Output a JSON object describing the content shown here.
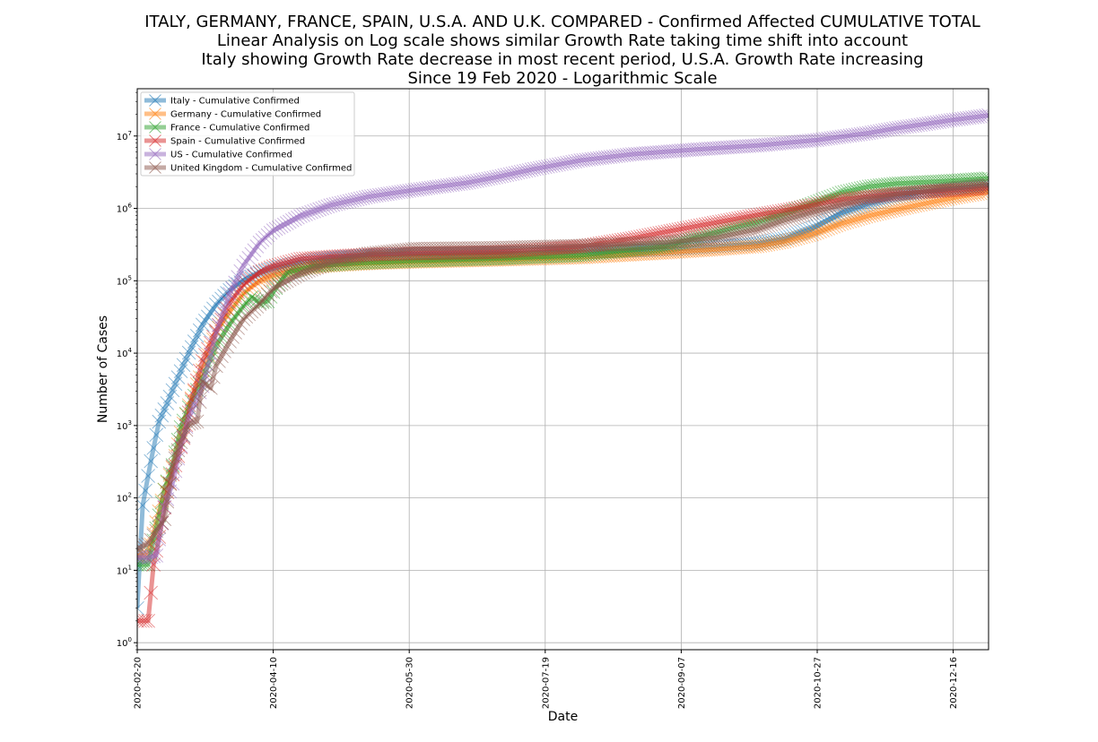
{
  "chart_data": {
    "type": "line",
    "title_lines": [
      "ITALY, GERMANY, FRANCE, SPAIN, U.S.A. AND U.K. COMPARED - Confirmed Affected CUMULATIVE TOTAL",
      "Linear Analysis on Log scale shows similar Growth Rate taking time shift into account",
      "Italy showing Growth Rate decrease in most recent period, U.S.A. Growth Rate increasing",
      "Since 19 Feb 2020 - Logarithmic Scale"
    ],
    "xlabel": "Date",
    "ylabel": "Number of Cases",
    "yscale": "log",
    "ylim": [
      0.8,
      45000000
    ],
    "xlim": [
      "2020-02-20",
      "2020-12-29"
    ],
    "x_ticks": [
      "2020-02-20",
      "2020-04-10",
      "2020-05-30",
      "2020-07-19",
      "2020-09-07",
      "2020-10-27",
      "2020-12-16"
    ],
    "y_ticks": [
      {
        "value": 1,
        "base": "10",
        "exp": "0"
      },
      {
        "value": 10,
        "base": "10",
        "exp": "1"
      },
      {
        "value": 100,
        "base": "10",
        "exp": "2"
      },
      {
        "value": 1000,
        "base": "10",
        "exp": "3"
      },
      {
        "value": 10000,
        "base": "10",
        "exp": "4"
      },
      {
        "value": 100000,
        "base": "10",
        "exp": "5"
      },
      {
        "value": 1000000,
        "base": "10",
        "exp": "6"
      },
      {
        "value": 10000000,
        "base": "10",
        "exp": "7"
      }
    ],
    "grid": true,
    "legend_position": "top-left",
    "marker": "x",
    "series": [
      {
        "name": "Italy - Cumulative Confirmed",
        "color": "#1f77b4",
        "points": [
          [
            "2020-02-20",
            3
          ],
          [
            "2020-02-22",
            79
          ],
          [
            "2020-02-25",
            322
          ],
          [
            "2020-02-28",
            1128
          ],
          [
            "2020-03-02",
            2036
          ],
          [
            "2020-03-06",
            4636
          ],
          [
            "2020-03-10",
            10149
          ],
          [
            "2020-03-15",
            24747
          ],
          [
            "2020-03-20",
            47021
          ],
          [
            "2020-03-25",
            74386
          ],
          [
            "2020-03-30",
            101739
          ],
          [
            "2020-04-05",
            128948
          ],
          [
            "2020-04-10",
            147577
          ],
          [
            "2020-04-20",
            181228
          ],
          [
            "2020-05-01",
            207428
          ],
          [
            "2020-05-15",
            223885
          ],
          [
            "2020-06-01",
            233197
          ],
          [
            "2020-07-01",
            240760
          ],
          [
            "2020-08-01",
            248070
          ],
          [
            "2020-09-01",
            269214
          ],
          [
            "2020-09-20",
            298156
          ],
          [
            "2020-10-05",
            327586
          ],
          [
            "2020-10-15",
            381602
          ],
          [
            "2020-10-25",
            525782
          ],
          [
            "2020-11-05",
            862681
          ],
          [
            "2020-11-15",
            1178529
          ],
          [
            "2020-11-25",
            1455022
          ],
          [
            "2020-12-05",
            1688939
          ],
          [
            "2020-12-15",
            1870576
          ],
          [
            "2020-12-29",
            2067487
          ]
        ]
      },
      {
        "name": "Germany - Cumulative Confirmed",
        "color": "#ff7f0e",
        "points": [
          [
            "2020-02-20",
            16
          ],
          [
            "2020-02-24",
            16
          ],
          [
            "2020-02-27",
            46
          ],
          [
            "2020-03-01",
            130
          ],
          [
            "2020-03-04",
            262
          ],
          [
            "2020-03-07",
            799
          ],
          [
            "2020-03-10",
            1908
          ],
          [
            "2020-03-15",
            5795
          ],
          [
            "2020-03-20",
            19848
          ],
          [
            "2020-03-25",
            37323
          ],
          [
            "2020-03-30",
            66885
          ],
          [
            "2020-04-05",
            100123
          ],
          [
            "2020-04-10",
            118235
          ],
          [
            "2020-04-20",
            147065
          ],
          [
            "2020-05-01",
            163009
          ],
          [
            "2020-05-15",
            174478
          ],
          [
            "2020-06-01",
            183410
          ],
          [
            "2020-07-01",
            195042
          ],
          [
            "2020-08-01",
            210402
          ],
          [
            "2020-09-01",
            244802
          ],
          [
            "2020-09-20",
            272337
          ],
          [
            "2020-10-05",
            300619
          ],
          [
            "2020-10-15",
            348557
          ],
          [
            "2020-10-25",
            437866
          ],
          [
            "2020-11-05",
            619089
          ],
          [
            "2020-11-15",
            790503
          ],
          [
            "2020-11-25",
            961320
          ],
          [
            "2020-12-05",
            1153556
          ],
          [
            "2020-12-15",
            1379238
          ],
          [
            "2020-12-29",
            1687185
          ]
        ]
      },
      {
        "name": "France - Cumulative Confirmed",
        "color": "#2ca02c",
        "points": [
          [
            "2020-02-20",
            12
          ],
          [
            "2020-02-24",
            12
          ],
          [
            "2020-02-27",
            38
          ],
          [
            "2020-03-01",
            130
          ],
          [
            "2020-03-04",
            285
          ],
          [
            "2020-03-07",
            949
          ],
          [
            "2020-03-10",
            1784
          ],
          [
            "2020-03-15",
            4499
          ],
          [
            "2020-03-20",
            12612
          ],
          [
            "2020-03-25",
            25233
          ],
          [
            "2020-03-30",
            44550
          ],
          [
            "2020-04-02",
            59105
          ],
          [
            "2020-04-05",
            50000
          ],
          [
            "2020-04-08",
            52000
          ],
          [
            "2020-04-10",
            70000
          ],
          [
            "2020-04-15",
            130000
          ],
          [
            "2020-04-25",
            160000
          ],
          [
            "2020-05-10",
            175000
          ],
          [
            "2020-06-01",
            189000
          ],
          [
            "2020-07-01",
            203000
          ],
          [
            "2020-08-01",
            225000
          ],
          [
            "2020-09-01",
            300000
          ],
          [
            "2020-09-20",
            470000
          ],
          [
            "2020-10-05",
            650000
          ],
          [
            "2020-10-15",
            850000
          ],
          [
            "2020-10-25",
            1150000
          ],
          [
            "2020-11-05",
            1650000
          ],
          [
            "2020-11-15",
            2000000
          ],
          [
            "2020-11-25",
            2200000
          ],
          [
            "2020-12-05",
            2300000
          ],
          [
            "2020-12-15",
            2400000
          ],
          [
            "2020-12-29",
            2600000
          ]
        ]
      },
      {
        "name": "Spain - Cumulative Confirmed",
        "color": "#d62728",
        "points": [
          [
            "2020-02-20",
            2
          ],
          [
            "2020-02-24",
            2
          ],
          [
            "2020-02-26",
            12
          ],
          [
            "2020-02-29",
            45
          ],
          [
            "2020-03-02",
            120
          ],
          [
            "2020-03-05",
            282
          ],
          [
            "2020-03-08",
            673
          ],
          [
            "2020-03-11",
            2277
          ],
          [
            "2020-03-15",
            7798
          ],
          [
            "2020-03-20",
            20410
          ],
          [
            "2020-03-25",
            49515
          ],
          [
            "2020-03-30",
            87956
          ],
          [
            "2020-04-05",
            131646
          ],
          [
            "2020-04-10",
            158273
          ],
          [
            "2020-04-20",
            200210
          ],
          [
            "2020-05-01",
            215216
          ],
          [
            "2020-05-15",
            230698
          ],
          [
            "2020-06-01",
            239638
          ],
          [
            "2020-07-01",
            249659
          ],
          [
            "2020-08-01",
            297000
          ],
          [
            "2020-08-20",
            386000
          ],
          [
            "2020-09-01",
            470973
          ],
          [
            "2020-09-20",
            640040
          ],
          [
            "2020-10-05",
            813412
          ],
          [
            "2020-10-15",
            936560
          ],
          [
            "2020-10-25",
            1098320
          ],
          [
            "2020-11-05",
            1328832
          ],
          [
            "2020-11-15",
            1458591
          ],
          [
            "2020-11-25",
            1594844
          ],
          [
            "2020-12-05",
            1684647
          ],
          [
            "2020-12-15",
            1762036
          ],
          [
            "2020-12-29",
            1912000
          ]
        ]
      },
      {
        "name": "US - Cumulative Confirmed",
        "color": "#9467bd",
        "points": [
          [
            "2020-02-20",
            15
          ],
          [
            "2020-02-24",
            15
          ],
          [
            "2020-02-27",
            16
          ],
          [
            "2020-03-01",
            75
          ],
          [
            "2020-03-04",
            158
          ],
          [
            "2020-03-07",
            520
          ],
          [
            "2020-03-10",
            1300
          ],
          [
            "2020-03-15",
            3500
          ],
          [
            "2020-03-20",
            19100
          ],
          [
            "2020-03-25",
            65778
          ],
          [
            "2020-03-30",
            161831
          ],
          [
            "2020-04-05",
            336851
          ],
          [
            "2020-04-10",
            496535
          ],
          [
            "2020-04-20",
            784708
          ],
          [
            "2020-05-01",
            1100000
          ],
          [
            "2020-05-15",
            1450000
          ],
          [
            "2020-06-01",
            1800000
          ],
          [
            "2020-06-20",
            2250000
          ],
          [
            "2020-07-01",
            2700000
          ],
          [
            "2020-07-15",
            3500000
          ],
          [
            "2020-08-01",
            4600000
          ],
          [
            "2020-08-20",
            5600000
          ],
          [
            "2020-09-07",
            6300000
          ],
          [
            "2020-09-20",
            6800000
          ],
          [
            "2020-10-05",
            7400000
          ],
          [
            "2020-10-15",
            8000000
          ],
          [
            "2020-10-27",
            8800000
          ],
          [
            "2020-11-05",
            9800000
          ],
          [
            "2020-11-15",
            11000000
          ],
          [
            "2020-11-25",
            12800000
          ],
          [
            "2020-12-05",
            14500000
          ],
          [
            "2020-12-15",
            16500000
          ],
          [
            "2020-12-29",
            19300000
          ]
        ]
      },
      {
        "name": "United Kingdom - Cumulative Confirmed",
        "color": "#8c564b",
        "points": [
          [
            "2020-02-20",
            20
          ],
          [
            "2020-02-24",
            23
          ],
          [
            "2020-02-27",
            35
          ],
          [
            "2020-03-01",
            51
          ],
          [
            "2020-03-04",
            273
          ],
          [
            "2020-03-07",
            590
          ],
          [
            "2020-03-10",
            1061
          ],
          [
            "2020-03-13",
            1140
          ],
          [
            "2020-03-15",
            3983
          ],
          [
            "2020-03-18",
            3300
          ],
          [
            "2020-03-20",
            6650
          ],
          [
            "2020-03-25",
            14543
          ],
          [
            "2020-03-30",
            29474
          ],
          [
            "2020-04-05",
            47806
          ],
          [
            "2020-04-10",
            78991
          ],
          [
            "2020-04-20",
            125856
          ],
          [
            "2020-05-01",
            178685
          ],
          [
            "2020-05-15",
            236711
          ],
          [
            "2020-06-01",
            276332
          ],
          [
            "2020-07-01",
            284276
          ],
          [
            "2020-08-01",
            304793
          ],
          [
            "2020-09-01",
            338676
          ],
          [
            "2020-09-20",
            394257
          ],
          [
            "2020-10-05",
            515571
          ],
          [
            "2020-10-15",
            689257
          ],
          [
            "2020-10-25",
            873800
          ],
          [
            "2020-11-05",
            1123197
          ],
          [
            "2020-11-15",
            1369318
          ],
          [
            "2020-11-25",
            1557007
          ],
          [
            "2020-12-05",
            1705971
          ],
          [
            "2020-12-15",
            1869666
          ],
          [
            "2020-12-29",
            2110000
          ]
        ]
      }
    ]
  }
}
